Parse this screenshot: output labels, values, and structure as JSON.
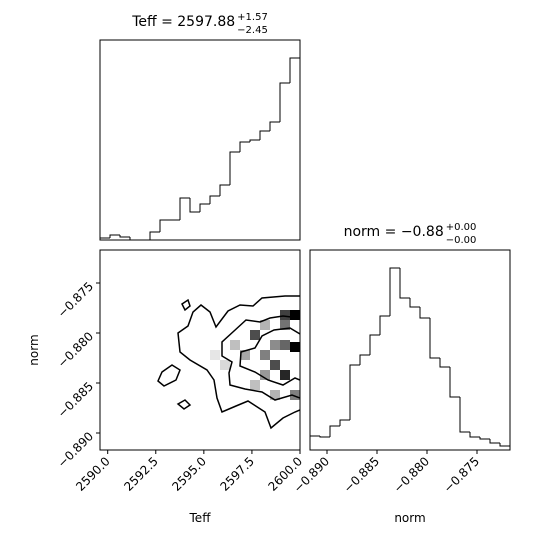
{
  "chart_data": [
    {
      "type": "histogram",
      "title": "Teff = 2597.88",
      "title_upper": "+1.57",
      "title_lower": "−2.45",
      "color": "#000000",
      "bins": [
        2589.6,
        2590.12,
        2590.64,
        2591.16,
        2591.68,
        2592.2,
        2592.72,
        2593.24,
        2593.76,
        2594.28,
        2594.8,
        2595.32,
        2595.84,
        2596.36,
        2596.88,
        2597.4,
        2597.92,
        2598.44,
        2598.96,
        2599.48,
        2600.0
      ],
      "counts": [
        2,
        5,
        3,
        0,
        0,
        8,
        20,
        20,
        42,
        28,
        36,
        44,
        55,
        88,
        98,
        100,
        109,
        118,
        157,
        182
      ],
      "xlim": [
        2589.6,
        2600
      ],
      "ylim": [
        0,
        200
      ]
    },
    {
      "type": "heatmap",
      "x_label": "Teff",
      "y_label": "norm",
      "color": "#000000",
      "xlim": [
        2589.6,
        2600
      ],
      "ylim": [
        -0.8917,
        -0.8717
      ],
      "xticks": [
        {
          "value": 2590,
          "label": "2590.0"
        },
        2592.5,
        {
          "value": 2595,
          "label": "2595.0"
        },
        2597.5,
        {
          "value": 2600,
          "label": "2600.0"
        }
      ],
      "yticks": [
        {
          "value": -0.875,
          "label": "−0.875"
        },
        {
          "value": -0.88,
          "label": "−0.880"
        },
        {
          "value": -0.885,
          "label": "−0.885"
        },
        {
          "value": -0.89,
          "label": "−0.890"
        }
      ],
      "x": [
        2599.74,
        2599.22,
        2599.74,
        2599.22,
        2597.66,
        2598.7,
        2598.18,
        2599.22,
        2598.7,
        2598.18,
        2599.74,
        2597.14,
        2596.62,
        2598.7,
        2596.1,
        2595.58,
        2597.66,
        2599.22,
        2598.18
      ],
      "y": [
        -0.8782,
        -0.8782,
        -0.8814,
        -0.8842,
        -0.8802,
        -0.8832,
        -0.8822,
        -0.8812,
        -0.8812,
        -0.8842,
        -0.8862,
        -0.8822,
        -0.8812,
        -0.8862,
        -0.8832,
        -0.8822,
        -0.8852,
        -0.8792,
        -0.8792
      ],
      "values": [
        1,
        0.75,
        1,
        0.85,
        0.7,
        0.7,
        0.5,
        0.6,
        0.45,
        0.4,
        0.5,
        0.35,
        0.25,
        0.3,
        0.15,
        0.1,
        0.25,
        0.55,
        0.3
      ]
    },
    {
      "type": "histogram",
      "title": "norm = −0.88",
      "title_upper": "+0.00",
      "title_lower": "−0.00",
      "x_label": "norm",
      "color": "#000000",
      "bins": [
        -0.8917,
        -0.8907,
        -0.8897,
        -0.8887,
        -0.8877,
        -0.8867,
        -0.8857,
        -0.8847,
        -0.8837,
        -0.8827,
        -0.8817,
        -0.8807,
        -0.8797,
        -0.8787,
        -0.8777,
        -0.8767,
        -0.8757,
        -0.8747,
        -0.8737,
        -0.8727,
        -0.8717
      ],
      "counts": [
        14,
        13,
        24,
        30,
        85,
        95,
        115,
        134,
        182,
        152,
        143,
        132,
        92,
        83,
        53,
        18,
        13,
        11,
        7,
        4
      ],
      "xlim": [
        -0.8917,
        -0.8717
      ],
      "ylim": [
        0,
        200
      ],
      "xticks": [
        {
          "value": -0.89,
          "label": "−0.890"
        },
        {
          "value": -0.885,
          "label": "−0.885"
        },
        {
          "value": -0.88,
          "label": "−0.880"
        },
        {
          "value": -0.875,
          "label": "−0.875"
        }
      ]
    }
  ]
}
